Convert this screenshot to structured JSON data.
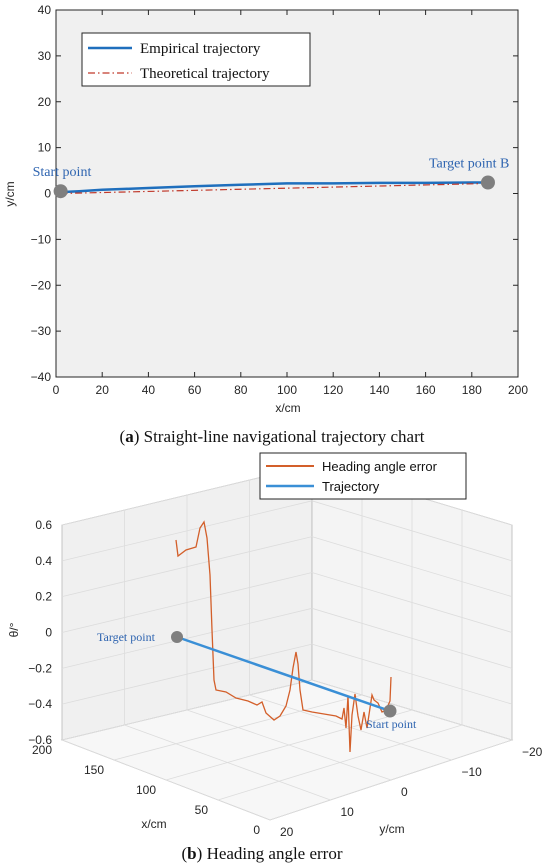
{
  "chart_data": [
    {
      "type": "line",
      "caption_letter": "a",
      "caption_text": "Straight-line navigational trajectory chart",
      "xlabel": "x/cm",
      "ylabel": "y/cm",
      "xlim": [
        0,
        200
      ],
      "ylim": [
        -40,
        40
      ],
      "xticks": [
        0,
        20,
        40,
        60,
        80,
        100,
        120,
        140,
        160,
        180,
        200
      ],
      "yticks": [
        40,
        30,
        20,
        10,
        0,
        -10,
        -20,
        -30,
        -40
      ],
      "grid": false,
      "legend_position": "top-left",
      "series": [
        {
          "name": "Empirical trajectory",
          "color": "#1f6fbd",
          "style": "solid",
          "x": [
            2,
            10,
            20,
            30,
            40,
            60,
            80,
            100,
            120,
            140,
            160,
            180,
            188
          ],
          "y": [
            0.3,
            0.5,
            0.8,
            1.0,
            1.2,
            1.6,
            1.9,
            2.2,
            2.2,
            2.3,
            2.3,
            2.4,
            2.4
          ]
        },
        {
          "name": "Theoretical trajectory",
          "color": "#c0392b",
          "style": "dashdot",
          "x": [
            2,
            188
          ],
          "y": [
            0.0,
            2.2
          ]
        }
      ],
      "annotations": [
        {
          "label": "Start point",
          "x": 2,
          "y": 0.5,
          "marker_color": "#7f7f7f"
        },
        {
          "label": "Target point B",
          "x": 187,
          "y": 2.4,
          "marker_color": "#7f7f7f"
        }
      ]
    },
    {
      "type": "line",
      "caption_letter": "b",
      "caption_text": "Heading angle error",
      "xlabel": "x/cm",
      "ylabel": "y/cm",
      "zlabel": "θ/°",
      "xticks": [
        0,
        50,
        100,
        150,
        200
      ],
      "yticks": [
        20,
        10,
        0,
        -10,
        -20
      ],
      "zticks": [
        0.6,
        0.4,
        0.2,
        0,
        -0.2,
        -0.4,
        -0.6
      ],
      "zlim": [
        -0.6,
        0.6
      ],
      "grid": true,
      "legend_position": "top-right",
      "series": [
        {
          "name": "Heading angle error",
          "color": "#d35f2a"
        },
        {
          "name": "Trajectory",
          "color": "#3a8fd6"
        }
      ],
      "annotations": [
        {
          "label": "Target point",
          "marker_color": "#7f7f7f"
        },
        {
          "label": "Start point",
          "marker_color": "#7f7f7f"
        }
      ]
    }
  ]
}
